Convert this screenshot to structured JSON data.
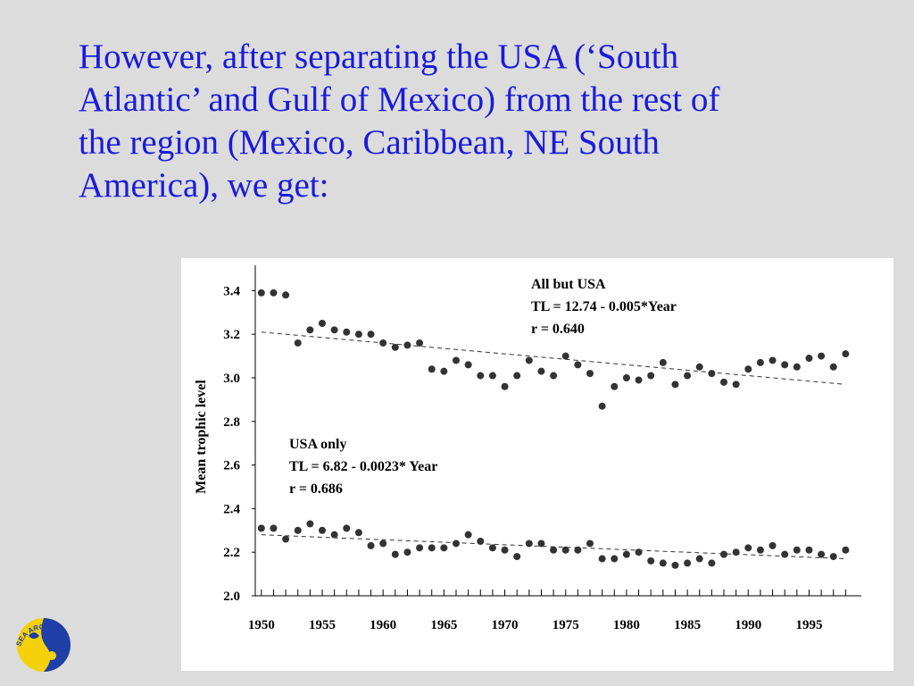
{
  "heading": {
    "lines": [
      "However, after separating the USA (‘South",
      "Atlantic’ and Gulf of Mexico) from the rest of",
      "the region (Mexico, Caribbean, NE South",
      "America), we get:"
    ]
  },
  "logo": {
    "text": "SEA AROUND US PROJECT",
    "colors": {
      "blue": "#1e3fa8",
      "yellow": "#f5d10c"
    }
  },
  "chart_data": {
    "type": "scatter",
    "ylabel": "Mean trophic level",
    "xlabel": "",
    "xlim": [
      1949.5,
      1999
    ],
    "ylim": [
      2.0,
      3.5
    ],
    "x_ticks": [
      1950,
      1955,
      1960,
      1965,
      1970,
      1975,
      1980,
      1985,
      1990,
      1995
    ],
    "y_ticks": [
      2.0,
      2.2,
      2.4,
      2.6,
      2.8,
      3.0,
      3.2,
      3.4
    ],
    "y_tick_labels": [
      "2.0",
      "2.2",
      "2.4",
      "2.6",
      "2.8",
      "3.0",
      "3.2",
      "3.4"
    ],
    "marker_color": "#333333",
    "series": [
      {
        "name": "All but USA",
        "annotation": [
          "All but USA",
          "TL = 12.74 - 0.005*Year",
          "r = 0.640"
        ],
        "trend": [
          [
            1950,
            3.21
          ],
          [
            1998,
            2.97
          ]
        ],
        "x": [
          1950,
          1951,
          1952,
          1953,
          1954,
          1955,
          1956,
          1957,
          1958,
          1959,
          1960,
          1961,
          1962,
          1963,
          1964,
          1965,
          1966,
          1967,
          1968,
          1969,
          1970,
          1971,
          1972,
          1973,
          1974,
          1975,
          1976,
          1977,
          1978,
          1979,
          1980,
          1981,
          1982,
          1983,
          1984,
          1985,
          1986,
          1987,
          1988,
          1989,
          1990,
          1991,
          1992,
          1993,
          1994,
          1995,
          1996,
          1997,
          1998
        ],
        "y": [
          3.39,
          3.39,
          3.38,
          3.16,
          3.22,
          3.25,
          3.22,
          3.21,
          3.2,
          3.2,
          3.16,
          3.14,
          3.15,
          3.16,
          3.04,
          3.03,
          3.08,
          3.06,
          3.01,
          3.01,
          2.96,
          3.01,
          3.08,
          3.03,
          3.01,
          3.1,
          3.06,
          3.02,
          2.87,
          2.96,
          3.0,
          2.99,
          3.01,
          3.07,
          2.97,
          3.01,
          3.05,
          3.02,
          2.98,
          2.97,
          3.04,
          3.07,
          3.08,
          3.06,
          3.05,
          3.09,
          3.1,
          3.05,
          3.11
        ]
      },
      {
        "name": "USA only",
        "annotation": [
          "USA only",
          "TL = 6.82 - 0.0023* Year",
          "r = 0.686"
        ],
        "trend": [
          [
            1950,
            2.28
          ],
          [
            1998,
            2.17
          ]
        ],
        "x": [
          1950,
          1951,
          1952,
          1953,
          1954,
          1955,
          1956,
          1957,
          1958,
          1959,
          1960,
          1961,
          1962,
          1963,
          1964,
          1965,
          1966,
          1967,
          1968,
          1969,
          1970,
          1971,
          1972,
          1973,
          1974,
          1975,
          1976,
          1977,
          1978,
          1979,
          1980,
          1981,
          1982,
          1983,
          1984,
          1985,
          1986,
          1987,
          1988,
          1989,
          1990,
          1991,
          1992,
          1993,
          1994,
          1995,
          1996,
          1997,
          1998
        ],
        "y": [
          2.31,
          2.31,
          2.26,
          2.3,
          2.33,
          2.3,
          2.28,
          2.31,
          2.29,
          2.23,
          2.24,
          2.19,
          2.2,
          2.22,
          2.22,
          2.22,
          2.24,
          2.28,
          2.25,
          2.22,
          2.21,
          2.18,
          2.24,
          2.24,
          2.21,
          2.21,
          2.21,
          2.24,
          2.17,
          2.17,
          2.19,
          2.2,
          2.16,
          2.15,
          2.14,
          2.15,
          2.17,
          2.15,
          2.19,
          2.2,
          2.22,
          2.21,
          2.23,
          2.19,
          2.21,
          2.21,
          2.19,
          2.18,
          2.21
        ]
      }
    ]
  }
}
